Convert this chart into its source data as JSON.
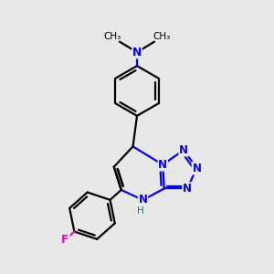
{
  "bg_color": "#e8e8e8",
  "bond_color": "#000000",
  "n_color": "#0000ff",
  "f_color": "#ff00cc",
  "h_color": "#008080",
  "line_width": 1.6,
  "figsize": [
    3.0,
    3.0
  ],
  "dpi": 100,
  "xlim": [
    0,
    10
  ],
  "ylim": [
    0,
    10
  ]
}
